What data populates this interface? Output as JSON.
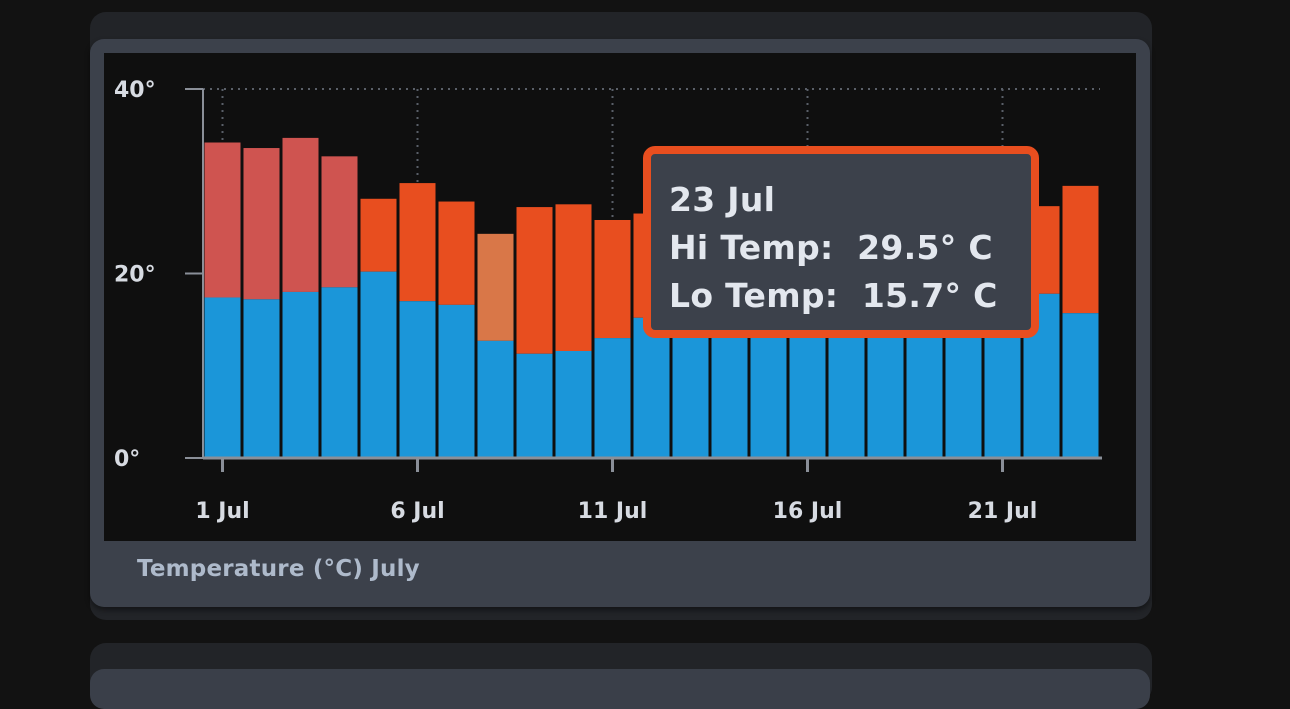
{
  "chart_data": {
    "type": "bar",
    "title": "",
    "caption": "Temperature (°C) July",
    "xlabel": "",
    "ylabel": "",
    "ylim": [
      0,
      40
    ],
    "yticks": [
      "0°",
      "20°",
      "40°"
    ],
    "xticks": [
      "1 Jul",
      "6 Jul",
      "11 Jul",
      "16 Jul",
      "21 Jul"
    ],
    "grid": "dotted",
    "categories": [
      "1 Jul",
      "2 Jul",
      "3 Jul",
      "4 Jul",
      "5 Jul",
      "6 Jul",
      "7 Jul",
      "8 Jul",
      "9 Jul",
      "10 Jul",
      "11 Jul",
      "12 Jul",
      "13 Jul",
      "14 Jul",
      "15 Jul",
      "16 Jul",
      "17 Jul",
      "18 Jul",
      "19 Jul",
      "20 Jul",
      "21 Jul",
      "22 Jul",
      "23 Jul"
    ],
    "series": [
      {
        "name": "Lo Temp",
        "color": "#1b96d9",
        "values": [
          17.4,
          17.2,
          18.0,
          18.5,
          20.2,
          17.0,
          16.6,
          12.7,
          11.3,
          11.6,
          13.0,
          15.2,
          14.8,
          15.2,
          15.8,
          16.0,
          15.6,
          15.4,
          16.0,
          16.2,
          16.5,
          17.8,
          15.7
        ]
      },
      {
        "name": "Hi Temp",
        "color": "#e84e1f",
        "values": [
          34.2,
          33.6,
          34.7,
          32.7,
          28.1,
          29.8,
          27.8,
          24.3,
          27.2,
          27.5,
          25.8,
          26.5,
          27.0,
          27.0,
          27.5,
          27.8,
          27.0,
          27.0,
          27.5,
          27.8,
          27.5,
          27.3,
          29.5
        ]
      }
    ],
    "hi_colors": [
      "#cf5450",
      "#cf5450",
      "#cf5450",
      "#cf5450",
      "#e84e1f",
      "#e84e1f",
      "#e84e1f",
      "#d97748",
      "#e84e1f",
      "#e84e1f",
      "#e84e1f",
      "#e84e1f",
      "#e84e1f",
      "#e84e1f",
      "#e84e1f",
      "#e84e1f",
      "#e84e1f",
      "#e84e1f",
      "#e84e1f",
      "#e84e1f",
      "#e84e1f",
      "#e84e1f",
      "#e84e1f"
    ]
  },
  "tooltip": {
    "date": "23 Jul",
    "hi": "Hi Temp:  29.5° C",
    "lo": "Lo Temp:  15.7° C"
  },
  "colors": {
    "lo": "#1b96d9",
    "hi": "#e84e1f",
    "tooltip_border": "#e84e1f"
  }
}
